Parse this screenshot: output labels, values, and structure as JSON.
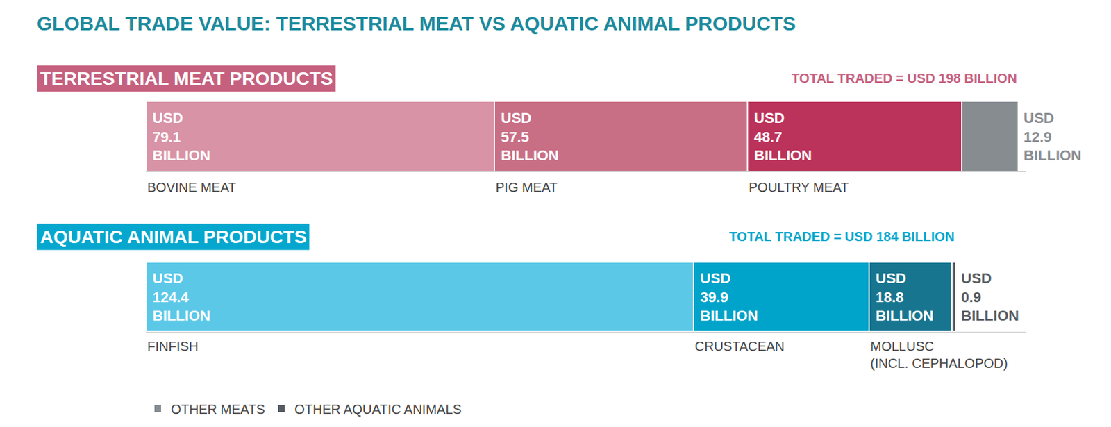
{
  "title": "GLOBAL TRADE VALUE: TERRESTRIAL MEAT VS AQUATIC ANIMAL PRODUCTS",
  "chart_data": [
    {
      "type": "bar",
      "title": "TERRESTRIAL MEAT PRODUCTS",
      "subtitle": "TOTAL TRADED = USD 198 BILLION",
      "color": "#c5607f",
      "orientation": "horizontal",
      "stacked": true,
      "data_labels": true,
      "tick_labels": false,
      "xlim": [
        0,
        200
      ],
      "series": [
        {
          "name": "BOVINE MEAT",
          "color": "#d893a6",
          "values": [
            79.1
          ],
          "value_labels": [
            "USD\n79.1\nBILLION"
          ]
        },
        {
          "name": "PIG MEAT",
          "color": "#c86f86",
          "values": [
            57.5
          ],
          "value_labels": [
            "USD\n57.5\nBILLION"
          ]
        },
        {
          "name": "POULTRY MEAT",
          "color": "#bb325b",
          "values": [
            48.7
          ],
          "value_labels": [
            "USD\n48.7\nBILLION"
          ]
        },
        {
          "name": "OTHER MEATS",
          "color": "#878c91",
          "values": [
            12.9
          ],
          "value_labels": [
            "USD\n12.9\nBILLION"
          ],
          "legend": "bottom left"
        }
      ]
    },
    {
      "type": "bar",
      "title": "AQUATIC ANIMAL PRODUCTS",
      "subtitle": "TOTAL TRADED = USD 184 BILLION",
      "color": "#05a7ce",
      "orientation": "horizontal",
      "stacked": true,
      "data_labels": true,
      "tick_labels": false,
      "xlim": [
        0,
        200
      ],
      "series": [
        {
          "name": "FINFISH",
          "color": "#5bc8e8",
          "values": [
            124.4
          ],
          "value_labels": [
            "USD\n124.4\nBILLION"
          ]
        },
        {
          "name": "CRUSTACEAN",
          "color": "#00a3c9",
          "values": [
            39.9
          ],
          "value_labels": [
            "USD\n39.9\nBILLION"
          ]
        },
        {
          "name": "MOLLUSC\n(INCL. CEPHALOPOD)",
          "color": "#17758f",
          "values": [
            18.8
          ],
          "value_labels": [
            "USD\n18.8\nBILLION"
          ]
        },
        {
          "name": "OTHER AQUATIC ANIMALS",
          "color": "#555b61",
          "values": [
            0.9
          ],
          "value_labels": [
            "USD\n0.9\nBILLION"
          ],
          "legend": "bottom left"
        }
      ]
    }
  ]
}
